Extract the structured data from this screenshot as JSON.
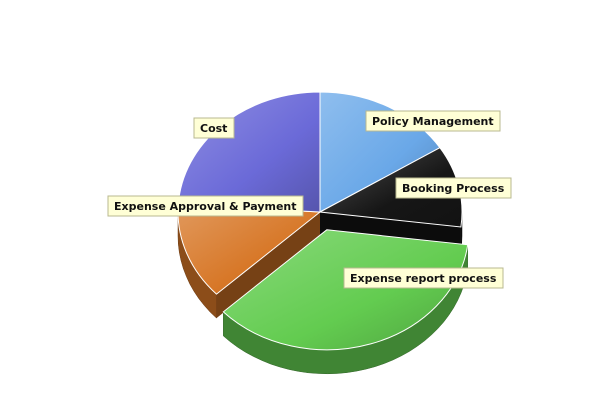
{
  "chart_data": {
    "type": "pie",
    "title": "",
    "categories": [
      "Policy Management",
      "Booking Process",
      "Expense report process",
      "Expense Approval & Payment",
      "Cost"
    ],
    "values": [
      16,
      11,
      36,
      13,
      24
    ],
    "value_unit": "percent (estimated from slice angles)",
    "colors": [
      "#6aa8e8",
      "#161616",
      "#63cc50",
      "#d77727",
      "#6b6ad8"
    ],
    "exploded": [
      "Expense report process"
    ],
    "legend": "none",
    "labels": "callouts"
  }
}
